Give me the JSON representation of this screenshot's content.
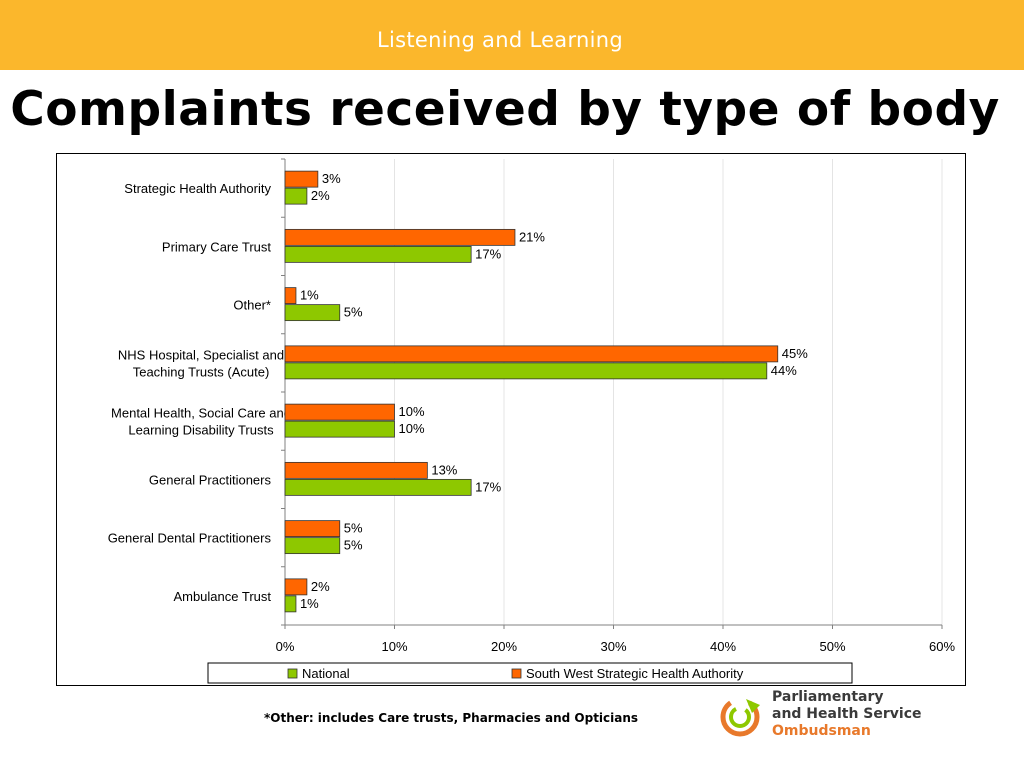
{
  "header": {
    "banner_text": "Listening and Learning"
  },
  "slide": {
    "title": "Complaints received by type of body"
  },
  "chart_data": {
    "type": "bar",
    "orientation": "horizontal",
    "categories": [
      [
        "Strategic Health Authority"
      ],
      [
        "Primary Care Trust"
      ],
      [
        "Other*"
      ],
      [
        "NHS Hospital, Specialist and",
        "Teaching Trusts (Acute)"
      ],
      [
        "Mental Health, Social Care and",
        "Learning Disability Trusts"
      ],
      [
        "General Practitioners"
      ],
      [
        "General Dental Practitioners"
      ],
      [
        "Ambulance Trust"
      ]
    ],
    "series": [
      {
        "name": "National",
        "color": "#8ec800",
        "values": [
          2,
          17,
          5,
          44,
          10,
          17,
          5,
          1
        ],
        "labels": [
          "2%",
          "17%",
          "5%",
          "44%",
          "10%",
          "17%",
          "5%",
          "1%"
        ]
      },
      {
        "name": "South West Strategic Health Authority",
        "color": "#ff6600",
        "values": [
          3,
          21,
          1,
          45,
          10,
          13,
          5,
          2
        ],
        "labels": [
          "3%",
          "21%",
          "1%",
          "45%",
          "10%",
          "13%",
          "5%",
          "2%"
        ]
      }
    ],
    "xlim": [
      0,
      60
    ],
    "x_ticks": [
      "0%",
      "10%",
      "20%",
      "30%",
      "40%",
      "50%",
      "60%"
    ],
    "grid": true,
    "legend_position": "bottom"
  },
  "footnote": "*Other: includes Care trusts, Pharmacies and Opticians",
  "logo": {
    "line1": "Parliamentary",
    "line2": "and Health Service",
    "line3": "Ombudsman"
  }
}
